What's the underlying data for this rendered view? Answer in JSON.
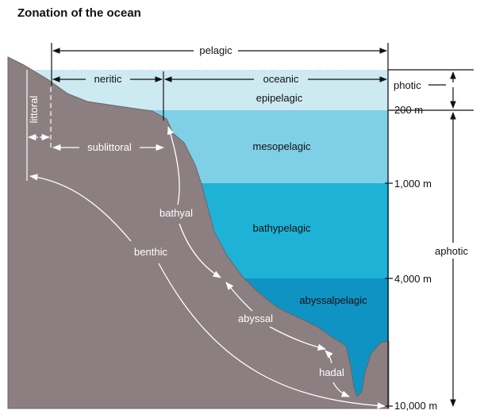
{
  "title": "Zonation of the ocean",
  "colors": {
    "epipelagic": "#cde9f2",
    "mesopelagic": "#7fcfe6",
    "bathypelagic": "#1eb3d6",
    "abyssalpelagic": "#0f93c2",
    "seafloor": "#8c7f82"
  },
  "zones": {
    "pelagic": "pelagic",
    "neritic": "neritic",
    "oceanic": "oceanic",
    "littoral": "littoral",
    "sublittoral": "sublittoral",
    "bathyal": "bathyal",
    "benthic": "benthic",
    "abyssal": "abyssal",
    "hadal": "hadal"
  },
  "layers": {
    "epipelagic": "epipelagic",
    "mesopelagic": "mesopelagic",
    "bathypelagic": "bathypelagic",
    "abyssalpelagic": "abyssalpelagic"
  },
  "depths": [
    "200 m",
    "1,000 m",
    "4,000 m",
    "10,000 m"
  ],
  "light": {
    "photic": "photic",
    "aphotic": "aphotic"
  }
}
